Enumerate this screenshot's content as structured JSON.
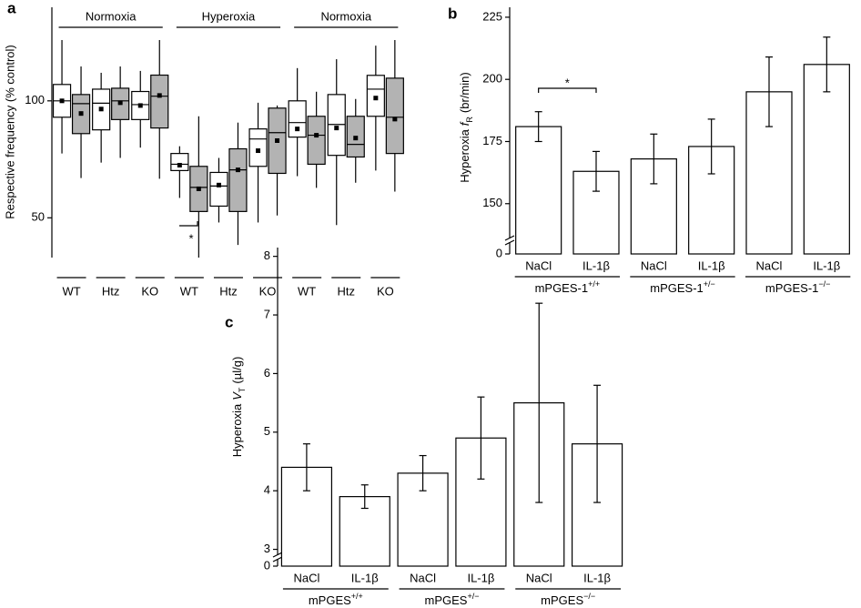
{
  "chart_data": [
    {
      "type": "box",
      "label": "a",
      "ylabel": "Respective frequency (% control)",
      "ylim": [
        33,
        140
      ],
      "yticks": [
        50,
        100
      ],
      "categories": [
        "WT",
        "Htz",
        "KO",
        "WT",
        "Htz",
        "KO",
        "WT",
        "Htz",
        "KO"
      ],
      "groups": [
        "Normoxia",
        "Hyperoxia",
        "Normoxia"
      ],
      "series": [
        {
          "color": "#ffffff",
          "boxes": [
            {
              "whislo": 77.5,
              "q1": 93,
              "med": 100,
              "q3": 107,
              "whishi": 126,
              "mean": 100
            },
            {
              "whislo": 73.6,
              "q1": 87.6,
              "med": 99,
              "q3": 105,
              "whishi": 112,
              "mean": 96.5
            },
            {
              "whislo": 80,
              "q1": 92,
              "med": 98.4,
              "q3": 104,
              "whishi": 112.8,
              "mean": 98
            },
            {
              "whislo": 58.5,
              "q1": 70.2,
              "med": 72.9,
              "q3": 77.5,
              "whishi": 80.6,
              "mean": 72.5
            },
            {
              "whislo": 48,
              "q1": 55,
              "med": 63.6,
              "q3": 69.4,
              "whishi": 75.6,
              "mean": 64
            },
            {
              "whislo": 48,
              "q1": 72,
              "med": 83.7,
              "q3": 88,
              "whishi": 99.2,
              "mean": 78.7
            },
            {
              "whislo": 67.8,
              "q1": 84.5,
              "med": 90.7,
              "q3": 100,
              "whishi": 114,
              "mean": 88
            },
            {
              "whislo": 46.9,
              "q1": 76.7,
              "med": 89.9,
              "q3": 102.7,
              "whishi": 117.8,
              "mean": 88.4
            },
            {
              "whislo": 70.2,
              "q1": 93.4,
              "med": 105,
              "q3": 110.9,
              "whishi": 123.6,
              "mean": 101.2
            }
          ]
        },
        {
          "color": "#b3b3b3",
          "boxes": [
            {
              "whislo": 67,
              "q1": 86,
              "med": 98.8,
              "q3": 102.7,
              "whishi": 114.7,
              "mean": 94.6
            },
            {
              "whislo": 75.6,
              "q1": 92,
              "med": 100,
              "q3": 105.4,
              "whishi": 114.7,
              "mean": 99.2
            },
            {
              "whislo": 66.7,
              "q1": 88.4,
              "med": 102,
              "q3": 111,
              "whishi": 126,
              "mean": 102.3
            },
            {
              "whislo": 33,
              "q1": 52.7,
              "med": 63,
              "q3": 72,
              "whishi": 93.4,
              "mean": 62.4
            },
            {
              "whislo": 38.4,
              "q1": 52.7,
              "med": 70.5,
              "q3": 79.5,
              "whishi": 90.7,
              "mean": 70.5
            },
            {
              "whislo": 51,
              "q1": 69,
              "med": 86.4,
              "q3": 96.9,
              "whishi": 98,
              "mean": 83
            },
            {
              "whislo": 62.8,
              "q1": 72.9,
              "med": 85.3,
              "q3": 93.4,
              "whishi": 103.9,
              "mean": 85.3
            },
            {
              "whislo": 65,
              "q1": 76,
              "med": 81.4,
              "q3": 93.4,
              "whishi": 100.8,
              "mean": 84.1
            },
            {
              "whislo": 61.2,
              "q1": 77.5,
              "med": 93,
              "q3": 109.7,
              "whishi": 126,
              "mean": 92.2
            }
          ]
        }
      ],
      "annotation": "*"
    },
    {
      "type": "bar",
      "label": "b",
      "ylabel": {
        "text": "Hyperoxia",
        "var": "f",
        "sub": "R",
        "unit": "(br/min)"
      },
      "ylim": [
        0,
        229
      ],
      "axis_break": 136,
      "yticks": [
        0,
        150,
        175,
        200,
        225
      ],
      "categories": [
        "NaCl",
        "IL-1β",
        "NaCl",
        "IL-1β",
        "NaCl",
        "IL-1β"
      ],
      "groups": [
        {
          "text": "mPGES-1",
          "sup": "+/+"
        },
        {
          "text": "mPGES-1",
          "sup": "+/−"
        },
        {
          "text": "mPGES-1",
          "sup": "−/−"
        }
      ],
      "values": [
        181,
        163,
        168,
        173,
        195,
        206
      ],
      "errors": [
        6,
        8,
        10,
        11,
        14,
        11
      ],
      "color": "#ffffff",
      "annotation": "*"
    },
    {
      "type": "bar",
      "label": "c",
      "ylabel": {
        "text": "Hyperoxia",
        "var": "V",
        "sub": "T",
        "unit": "(µl/g)"
      },
      "ylim": [
        0,
        8.15
      ],
      "axis_break": 2.9,
      "yticks": [
        0,
        3,
        4,
        5,
        6,
        7,
        8
      ],
      "categories": [
        "NaCl",
        "IL-1β",
        "NaCl",
        "IL-1β",
        "NaCl",
        "IL-1β"
      ],
      "groups": [
        {
          "text": "mPGES",
          "sup": "+/+"
        },
        {
          "text": "mPGES",
          "sup": "+/−"
        },
        {
          "text": "mPGES",
          "sup": "−/−"
        }
      ],
      "values": [
        4.4,
        3.9,
        4.3,
        4.9,
        5.5,
        4.8
      ],
      "errors": [
        0.4,
        0.2,
        0.3,
        0.7,
        1.7,
        1.0
      ],
      "color": "#ffffff"
    }
  ]
}
